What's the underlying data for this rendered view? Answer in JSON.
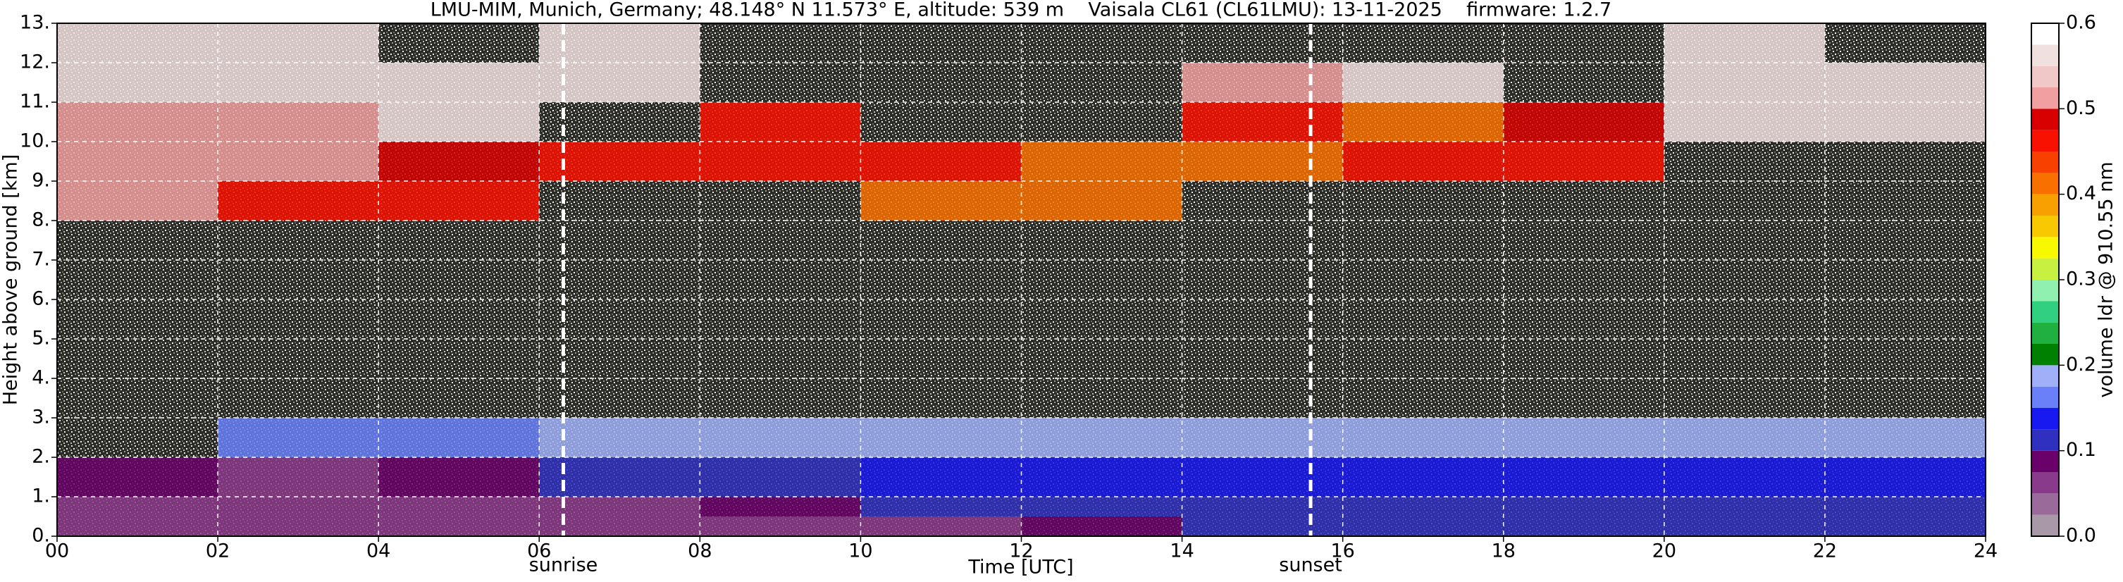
{
  "chart_data": {
    "type": "heatmap",
    "title": "LMU-MIM, Munich, Germany; 48.148° N 11.573° E, altitude: 539 m    Vaisala CL61 (CL61LMU): 13-11-2025    firmware: 1.2.7",
    "xlabel": "Time [UTC]",
    "ylabel": "Height above ground [km]",
    "colorbar_label": "volume ldr @ 910.55 nm",
    "x_bins": [
      0,
      2,
      4,
      6,
      8,
      10,
      12,
      14,
      16,
      18,
      20,
      22,
      24
    ],
    "y_bins": [
      0,
      0.5,
      1,
      2,
      3,
      8,
      9,
      10,
      11,
      12,
      13
    ],
    "values": [
      [
        0.06,
        0.06,
        0.06,
        0.07,
        0.06,
        0.06,
        0.08,
        0.1,
        0.1,
        0.1,
        0.1,
        0.11
      ],
      [
        0.05,
        0.05,
        0.05,
        0.06,
        0.09,
        0.1,
        0.11,
        0.12,
        0.12,
        0.12,
        0.12,
        0.12
      ],
      [
        0.08,
        0.07,
        0.08,
        0.1,
        0.12,
        0.13,
        0.13,
        0.14,
        0.14,
        0.14,
        0.14,
        0.14
      ],
      [
        null,
        0.17,
        0.17,
        0.18,
        0.18,
        0.18,
        0.18,
        0.18,
        0.18,
        0.18,
        0.18,
        0.18
      ],
      [
        null,
        null,
        null,
        null,
        null,
        null,
        null,
        null,
        null,
        null,
        null,
        null
      ],
      [
        0.5,
        0.45,
        0.45,
        null,
        null,
        0.4,
        0.4,
        null,
        null,
        null,
        null,
        null
      ],
      [
        0.5,
        0.5,
        0.48,
        0.45,
        0.45,
        0.45,
        0.42,
        0.4,
        0.45,
        0.45,
        null,
        null
      ],
      [
        0.5,
        0.5,
        0.55,
        null,
        0.45,
        null,
        null,
        0.45,
        0.42,
        0.48,
        0.55,
        0.55
      ],
      [
        0.55,
        0.55,
        0.55,
        0.55,
        null,
        null,
        null,
        0.5,
        0.55,
        null,
        0.55,
        0.55
      ],
      [
        0.55,
        0.55,
        null,
        0.55,
        null,
        null,
        null,
        null,
        null,
        null,
        0.55,
        null
      ]
    ],
    "xlim": [
      0,
      24
    ],
    "ylim": [
      0,
      13
    ],
    "xticks": [
      {
        "value": 0,
        "label": "00"
      },
      {
        "value": 2,
        "label": "02"
      },
      {
        "value": 4,
        "label": "04"
      },
      {
        "value": 6,
        "label": "06"
      },
      {
        "value": 8,
        "label": "08"
      },
      10,
      12,
      14,
      16,
      18,
      20,
      22,
      24
    ],
    "yticks": [
      {
        "value": 0,
        "label": "0."
      },
      {
        "value": 1,
        "label": "1."
      },
      {
        "value": 2,
        "label": "2."
      },
      {
        "value": 3,
        "label": "3."
      },
      {
        "value": 4,
        "label": "4."
      },
      {
        "value": 5,
        "label": "5."
      },
      {
        "value": 6,
        "label": "6."
      },
      {
        "value": 7,
        "label": "7."
      },
      {
        "value": 8,
        "label": "8."
      },
      {
        "value": 9,
        "label": "9."
      },
      {
        "value": 10,
        "label": "10."
      },
      {
        "value": 11,
        "label": "11."
      },
      {
        "value": 12,
        "label": "12."
      },
      {
        "value": 13,
        "label": "13."
      }
    ],
    "clim": [
      0,
      0.6
    ],
    "cticks": [
      {
        "value": 0,
        "label": "0.0"
      },
      0.1,
      0.2,
      0.3,
      0.4,
      0.5,
      0.6
    ],
    "colors": [
      "#a898a8",
      "#9a6a9a",
      "#8a3a8a",
      "#6a006a",
      "#3030c0",
      "#1818f0",
      "#6a80f8",
      "#a0b0f8",
      "#008000",
      "#20b040",
      "#30d080",
      "#90f0b0",
      "#c8f040",
      "#f8f800",
      "#f8c800",
      "#f8a000",
      "#f87000",
      "#f84000",
      "#f81000",
      "#d80000",
      "#f0a0a0",
      "#f0c8c8",
      "#f0e0e0",
      "#ffffff"
    ],
    "grid": true,
    "annotations": [
      {
        "text": "sunrise",
        "x": 6.3
      },
      {
        "text": "sunset",
        "x": 15.6
      }
    ]
  }
}
